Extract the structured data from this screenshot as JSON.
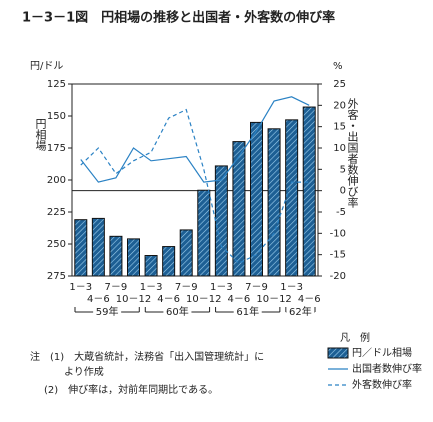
{
  "chart_data": {
    "type": "bar",
    "title": "1－3－1図　円相場の推移と出国者・外客数の伸び率",
    "y_unit": "円/ドル",
    "y2_unit": "%",
    "ylabel": "円相場",
    "y2label": "外客・出国者数伸び率",
    "groups": [
      {
        "label": "59年",
        "categories": [
          "1－3",
          "4－6",
          "7－9",
          "10－12"
        ]
      },
      {
        "label": "60年",
        "categories": [
          "1－3",
          "4－6",
          "7－9",
          "10－12"
        ]
      },
      {
        "label": "61年",
        "categories": [
          "1－3",
          "4－6",
          "7－9",
          "10－12"
        ]
      },
      {
        "label": "62年",
        "categories": [
          "1－3",
          "4－6"
        ]
      }
    ],
    "ylim": [
      275,
      125
    ],
    "yticks": [
      125,
      150,
      175,
      200,
      225,
      250,
      275
    ],
    "y2lim": [
      -20,
      25
    ],
    "y2ticks": [
      25,
      20,
      15,
      10,
      5,
      0,
      -5,
      -10,
      -15,
      -20
    ],
    "legend_title": "凡　例",
    "series": [
      {
        "name": "円／ドル相場",
        "type": "bar",
        "color": "#1d5f94",
        "values": [
          231,
          230,
          244,
          246,
          259,
          252,
          239,
          208,
          189,
          170,
          155,
          160,
          153,
          143
        ]
      },
      {
        "name": "出国者数伸び率",
        "type": "line",
        "axis": "y2",
        "color": "#2b82c4",
        "dash": false,
        "values": [
          7.3,
          2,
          3,
          10,
          7,
          7.5,
          8,
          2,
          2.5,
          8,
          14,
          21,
          22,
          20
        ]
      },
      {
        "name": "外客数伸び率",
        "type": "line",
        "axis": "y2",
        "color": "#2b82c4",
        "dash": true,
        "values": [
          6,
          10,
          4,
          7,
          9,
          17,
          19,
          5,
          -13,
          -17,
          -15,
          -10,
          2,
          2
        ]
      }
    ],
    "notes": [
      "注　(1)　大蔵省統計，法務省「出入国管理統計」に",
      "より作成",
      "(2)　伸び率は，対前年同期比である。"
    ]
  }
}
